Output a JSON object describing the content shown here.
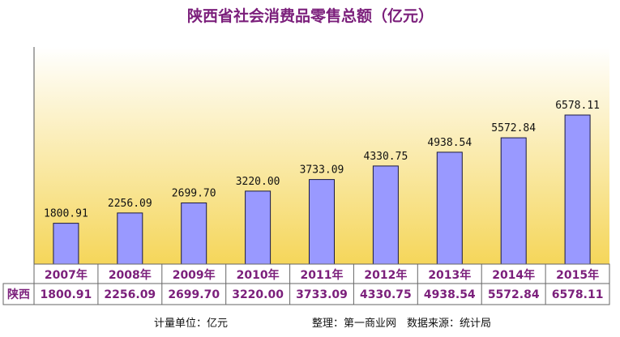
{
  "chart_data": {
    "type": "bar",
    "title": "陕西省社会消费品零售总额（亿元）",
    "categories": [
      "2007年",
      "2008年",
      "2009年",
      "2010年",
      "2011年",
      "2012年",
      "2013年",
      "2014年",
      "2015年"
    ],
    "values": [
      1800.91,
      2256.09,
      2699.7,
      3220.0,
      3733.09,
      4330.75,
      4938.54,
      5572.84,
      6578.11
    ],
    "value_labels": [
      "1800.91",
      "2256.09",
      "2699.70",
      "3220.00",
      "3733.09",
      "4330.75",
      "4938.54",
      "5572.84",
      "6578.11"
    ],
    "row_label": "陕西",
    "ylim": [
      0,
      7000
    ],
    "grid": false,
    "colors": {
      "bar_fill": "#9999ff",
      "bar_stroke": "#1a1a40",
      "bg_top": "#ffffff",
      "bg_bottom": "#f5d65a",
      "label_text": "#7b1f7b"
    }
  },
  "footer": {
    "unit": "计量单位：亿元",
    "source": "整理：第一商业网　数据来源：统计局"
  }
}
